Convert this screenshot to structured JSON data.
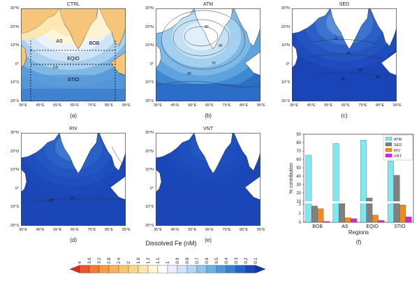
{
  "maps": [
    {
      "key": "ctrl",
      "title": "CTRL",
      "label": "(a)",
      "region_labels": [
        "AS",
        "BOB",
        "EQIO",
        "STIO"
      ]
    },
    {
      "key": "atm",
      "title": "ATM",
      "label": "(b)"
    },
    {
      "key": "sed",
      "title": "SED",
      "label": "(c)"
    },
    {
      "key": "riv",
      "title": "RIV",
      "label": "(d)"
    },
    {
      "key": "vnt",
      "title": "VNT",
      "label": "(e)"
    }
  ],
  "lat_labels": [
    "30°N",
    "20°N",
    "10°N",
    "0°",
    "10°S",
    "20°S"
  ],
  "lon_labels": [
    "35°E",
    "45°E",
    "55°E",
    "65°E",
    "75°E",
    "85°E",
    "95°E"
  ],
  "atm_contours": [
    "80",
    "90",
    "70",
    "60"
  ],
  "sed_contours": [
    "10",
    "20",
    "30",
    "40",
    "40"
  ],
  "riv_contours": [
    "0.5",
    "1.0"
  ],
  "ctrl_contours": [
    "0.8"
  ],
  "colorbar": {
    "title": "Dissolved Fe (nM)",
    "ticks": [
      "4",
      "3.6",
      "3.2",
      "2.8",
      "2.4",
      "2",
      "1.6",
      "1.2",
      "1.1",
      "1",
      "0.9",
      "0.8",
      "0.7",
      "0.6",
      "0.5",
      "0.4",
      "0.3",
      "0.2",
      "0.1"
    ],
    "colors": [
      "#d7301f",
      "#e8542b",
      "#f07a36",
      "#f59a45",
      "#f8b35a",
      "#fac471",
      "#fbd58a",
      "#fde7ad",
      "#fff6d6",
      "#ffffff",
      "#e6f1fb",
      "#cfe4f7",
      "#b4d6f1",
      "#93c4ea",
      "#6fb0e2",
      "#4e98d8",
      "#357fcd",
      "#2464c2",
      "#1a46b5",
      "#1531a8"
    ]
  },
  "chart_data": {
    "type": "bar",
    "label": "(f)",
    "categories": [
      "BOB",
      "AS",
      "EQIO",
      "STIO"
    ],
    "series": [
      {
        "name": "ATM",
        "color": "#7de8ef",
        "values": [
          65,
          79,
          83,
          58
        ]
      },
      {
        "name": "SED",
        "color": "#808080",
        "values": [
          4.5,
          10,
          14,
          41
        ]
      },
      {
        "name": "RIV",
        "color": "#f08a1c",
        "values": [
          1.5,
          0.5,
          0.8,
          1.9
        ]
      },
      {
        "name": "VNT",
        "color": "#e020d8",
        "values": [
          0.1,
          0.4,
          0.2,
          0.6
        ]
      }
    ],
    "ylabel": "% contribution",
    "xlabel": "Regions",
    "ylim": [
      0,
      90
    ],
    "yticks": [
      "0",
      "1",
      "2",
      "10",
      "20",
      "30",
      "40",
      "50",
      "60",
      "70",
      "80",
      "90"
    ],
    "axis_break": true,
    "legend_position": "top-right"
  }
}
